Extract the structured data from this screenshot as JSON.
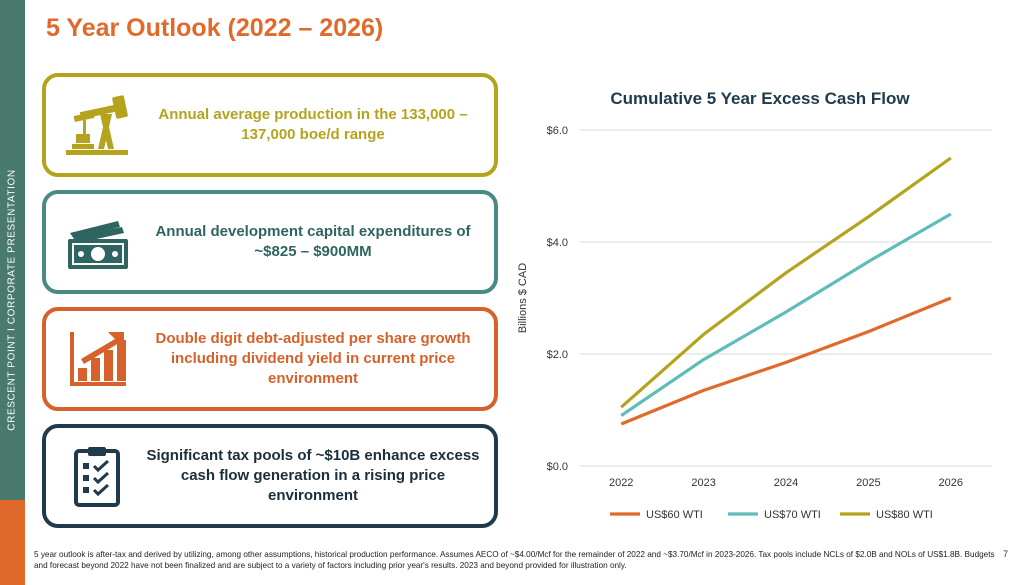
{
  "sidebar_label": "CRESCENT POINT   I   CORPORATE PRESENTATION",
  "title": "5 Year Outlook (2022 – 2026)",
  "cards": [
    {
      "text": "Annual average production in the 133,000 – 137,000 boe/d range",
      "icon": "oil-pump-icon",
      "color": "#b5a31d"
    },
    {
      "text": "Annual development capital expenditures of ~$825 – $900MM",
      "icon": "cash-icon",
      "color": "#4a8a84"
    },
    {
      "text": "Double digit debt-adjusted per share growth including dividend yield in current price environment",
      "icon": "growth-chart-icon",
      "color": "#d6612b"
    },
    {
      "text": "Significant tax pools of ~$10B enhance excess cash flow generation in a rising price environment",
      "icon": "checklist-icon",
      "color": "#1f3a4c"
    }
  ],
  "footnote": "5 year outlook is after-tax and derived by utilizing, among other assumptions, historical production performance. Assumes AECO of ~$4.00/Mcf for the remainder of 2022 and ~$3.70/Mcf in 2023-2026. Tax pools include NCLs of $2.0B and NOLs of US$1.8B. Budgets and forecast beyond 2022 have not been finalized and are subject to a variety of factors including prior year's results. 2023 and beyond provided for illustration only.",
  "page_number": "7",
  "chart_data": {
    "type": "line",
    "title": "Cumulative 5 Year Excess Cash Flow",
    "ylabel": "Billions $ CAD",
    "xlabel": "",
    "x": [
      "2022",
      "2023",
      "2024",
      "2025",
      "2026"
    ],
    "ylim": [
      0,
      6
    ],
    "yticks": [
      "$0.0",
      "$2.0",
      "$4.0",
      "$6.0"
    ],
    "ytick_values": [
      0,
      2,
      4,
      6
    ],
    "grid": true,
    "legend": "bottom",
    "series": [
      {
        "name": "US$60 WTI",
        "color": "#df6a2b",
        "values": [
          0.75,
          1.35,
          1.85,
          2.4,
          3.0
        ]
      },
      {
        "name": "US$70 WTI",
        "color": "#5fbcb8",
        "values": [
          0.9,
          1.9,
          2.75,
          3.65,
          4.5
        ]
      },
      {
        "name": "US$80 WTI",
        "color": "#b5a31d",
        "values": [
          1.05,
          2.35,
          3.45,
          4.45,
          5.5
        ]
      }
    ]
  }
}
